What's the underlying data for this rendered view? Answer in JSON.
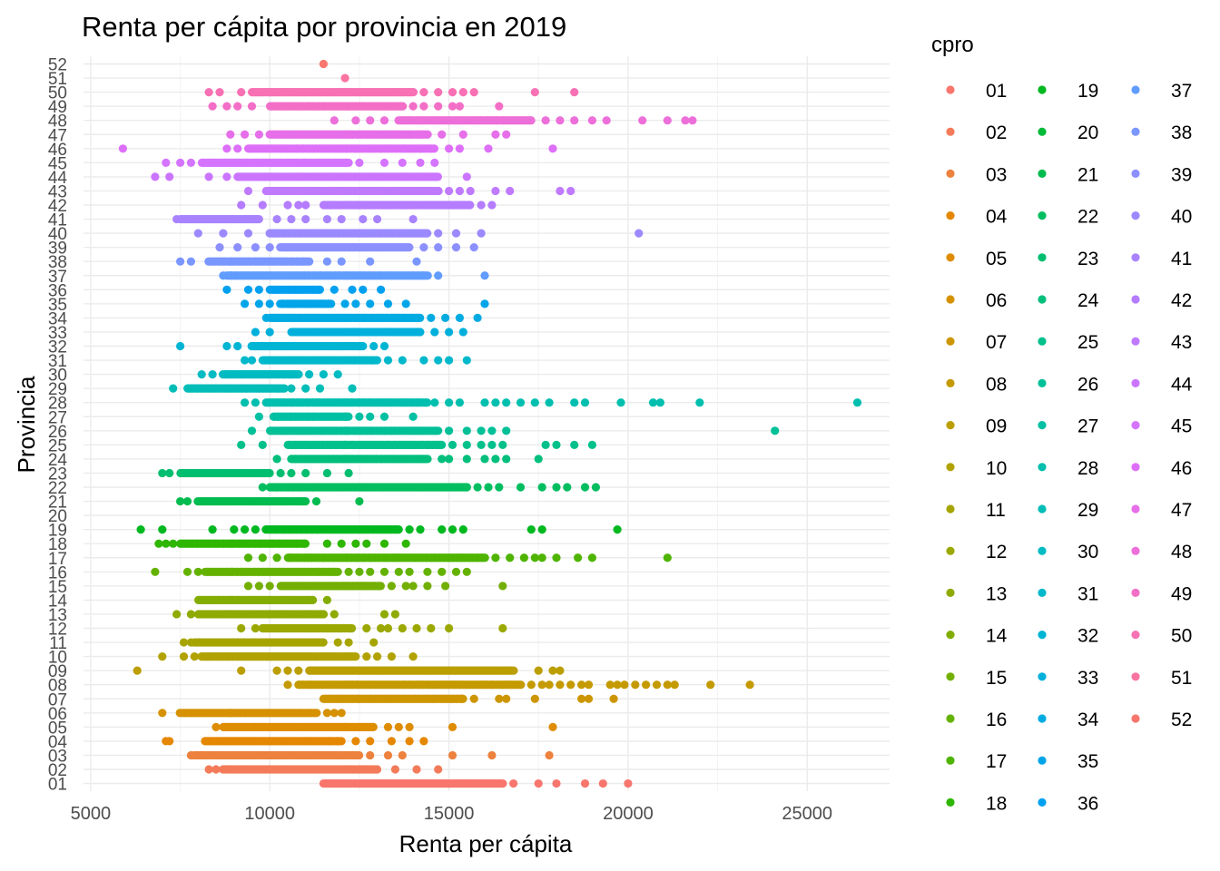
{
  "chart_data": {
    "type": "scatter",
    "title": "Renta per cápita por provincia en 2019",
    "xlabel": "Renta per cápita",
    "ylabel": "Provincia",
    "xlim": [
      4800,
      27300
    ],
    "x_ticks": [
      5000,
      10000,
      15000,
      20000,
      25000
    ],
    "categories": [
      "01",
      "02",
      "03",
      "04",
      "05",
      "06",
      "07",
      "08",
      "09",
      "10",
      "11",
      "12",
      "13",
      "14",
      "15",
      "16",
      "17",
      "18",
      "19",
      "20",
      "21",
      "22",
      "23",
      "24",
      "25",
      "26",
      "27",
      "28",
      "29",
      "30",
      "31",
      "32",
      "33",
      "34",
      "35",
      "36",
      "37",
      "38",
      "39",
      "40",
      "41",
      "42",
      "43",
      "44",
      "45",
      "46",
      "47",
      "48",
      "49",
      "50",
      "51",
      "52"
    ],
    "grid": true,
    "legend": {
      "title": "cpro",
      "position": "right",
      "columns": 3
    },
    "series": [
      {
        "name": "01",
        "color": "#F8766D",
        "dense": [
          11500,
          16500
        ],
        "points": [
          11600,
          12000,
          12400,
          13000,
          13300,
          15800,
          16800,
          17500,
          18000,
          18800,
          19300,
          20000
        ]
      },
      {
        "name": "02",
        "color": "#F37B59",
        "dense": [
          8700,
          13000
        ],
        "points": [
          8300,
          8500,
          13500,
          14100,
          14700
        ]
      },
      {
        "name": "03",
        "color": "#ED813E",
        "dense": [
          7900,
          12500
        ],
        "points": [
          7800,
          12800,
          13300,
          13700,
          15100,
          16200,
          17800
        ]
      },
      {
        "name": "04",
        "color": "#E58700",
        "dense": [
          8200,
          12000
        ],
        "points": [
          7100,
          7200,
          12400,
          12800,
          13400,
          13900,
          14300
        ]
      },
      {
        "name": "05",
        "color": "#DE8C00",
        "dense": [
          8700,
          12900
        ],
        "points": [
          8500,
          13300,
          13600,
          13900,
          15100,
          17900
        ]
      },
      {
        "name": "06",
        "color": "#D69100",
        "dense": [
          7500,
          11300
        ],
        "points": [
          7000,
          11600,
          11800,
          12000
        ]
      },
      {
        "name": "07",
        "color": "#CD9600",
        "dense": [
          11500,
          15400
        ],
        "points": [
          15700,
          16400,
          16600,
          17400,
          18700,
          18900,
          19600
        ]
      },
      {
        "name": "08",
        "color": "#C49A00",
        "dense": [
          10800,
          17000
        ],
        "points": [
          10500,
          17300,
          17600,
          17800,
          18100,
          18400,
          18700,
          18900,
          19500,
          19700,
          19900,
          20200,
          20500,
          20800,
          21100,
          21300,
          22300,
          23400
        ]
      },
      {
        "name": "09",
        "color": "#BB9E00",
        "dense": [
          11100,
          16800
        ],
        "points": [
          6300,
          9200,
          10200,
          10500,
          10800,
          17500,
          17900,
          18100
        ]
      },
      {
        "name": "10",
        "color": "#B1A200",
        "dense": [
          8100,
          12400
        ],
        "points": [
          7000,
          7600,
          7900,
          12700,
          13000,
          13400,
          14000
        ]
      },
      {
        "name": "11",
        "color": "#A6A500",
        "dense": [
          7900,
          11500
        ],
        "points": [
          7600,
          7800,
          11900,
          12200,
          12900
        ]
      },
      {
        "name": "12",
        "color": "#9BA800",
        "dense": [
          9800,
          12300
        ],
        "points": [
          9200,
          9600,
          12700,
          13100,
          13300,
          13700,
          14100,
          14500,
          15000,
          16500
        ]
      },
      {
        "name": "13",
        "color": "#8FAA00",
        "dense": [
          8000,
          11500
        ],
        "points": [
          7400,
          7800,
          11800,
          13200,
          13500
        ]
      },
      {
        "name": "14",
        "color": "#82AD00",
        "dense": [
          8000,
          11200
        ],
        "points": [
          11600
        ]
      },
      {
        "name": "15",
        "color": "#73AF00",
        "dense": [
          10300,
          13100
        ],
        "points": [
          9400,
          9700,
          10000,
          13400,
          13800,
          14000,
          14400,
          14900,
          16500
        ]
      },
      {
        "name": "16",
        "color": "#64B200",
        "dense": [
          8200,
          11900
        ],
        "points": [
          6800,
          7700,
          8000,
          12200,
          12500,
          12800,
          13200,
          13600,
          13900,
          14400,
          14800,
          15200,
          15500
        ]
      },
      {
        "name": "17",
        "color": "#4FB400",
        "dense": [
          10500,
          16000
        ],
        "points": [
          9400,
          9800,
          10200,
          16300,
          16700,
          17100,
          17400,
          17600,
          18000,
          18600,
          19000,
          21100
        ]
      },
      {
        "name": "18",
        "color": "#2EB600",
        "dense": [
          7500,
          11000
        ],
        "points": [
          6900,
          7100,
          7300,
          11600,
          12000,
          12400,
          12700,
          13200,
          13800
        ]
      },
      {
        "name": "19",
        "color": "#00B81F",
        "dense": [
          9900,
          13600
        ],
        "points": [
          6400,
          7000,
          8400,
          9000,
          9300,
          9600,
          13900,
          14200,
          14800,
          15100,
          15400,
          17300,
          17600,
          19700
        ]
      },
      {
        "name": "20",
        "color": "#00BA38",
        "dense": [
          0,
          0
        ],
        "points": []
      },
      {
        "name": "21",
        "color": "#00BB4E",
        "dense": [
          8000,
          11000
        ],
        "points": [
          7500,
          7700,
          11300,
          12500
        ]
      },
      {
        "name": "22",
        "color": "#00BD5F",
        "dense": [
          10000,
          15500
        ],
        "points": [
          9800,
          10200,
          10500,
          10800,
          11200,
          15800,
          16100,
          16400,
          17000,
          17600,
          18000,
          18300,
          18800,
          19100
        ]
      },
      {
        "name": "23",
        "color": "#00BE6F",
        "dense": [
          7500,
          10000
        ],
        "points": [
          7000,
          7200,
          10300,
          10600,
          11000,
          11600,
          12200
        ]
      },
      {
        "name": "24",
        "color": "#00BF7D",
        "dense": [
          10600,
          14400
        ],
        "points": [
          10200,
          14800,
          15000,
          15500,
          16000,
          16300,
          16600,
          17500
        ]
      },
      {
        "name": "25",
        "color": "#00C08B",
        "dense": [
          10500,
          14800
        ],
        "points": [
          9200,
          9800,
          15100,
          15500,
          15900,
          16200,
          16500,
          17700,
          18000,
          18500,
          19000
        ]
      },
      {
        "name": "26",
        "color": "#00C097",
        "dense": [
          10000,
          14700
        ],
        "points": [
          9500,
          15000,
          15500,
          15900,
          16200,
          16600,
          24100
        ]
      },
      {
        "name": "27",
        "color": "#00C0A3",
        "dense": [
          10100,
          12200
        ],
        "points": [
          9700,
          12500,
          12800,
          13200,
          14000
        ]
      },
      {
        "name": "28",
        "color": "#00BFAE",
        "dense": [
          9900,
          14400
        ],
        "points": [
          9300,
          9600,
          14600,
          15000,
          15300,
          16000,
          16300,
          16600,
          17000,
          17400,
          17800,
          18500,
          18800,
          19800,
          20700,
          20900,
          22000,
          26400
        ]
      },
      {
        "name": "29",
        "color": "#00BDB8",
        "dense": [
          7700,
          10400
        ],
        "points": [
          7300,
          10600,
          11000,
          11400,
          12300
        ]
      },
      {
        "name": "30",
        "color": "#00BBC2",
        "dense": [
          8700,
          10800
        ],
        "points": [
          8100,
          8400,
          11100,
          11500,
          11900
        ]
      },
      {
        "name": "31",
        "color": "#00B8CB",
        "dense": [
          9800,
          13000
        ],
        "points": [
          9300,
          9500,
          13300,
          13700,
          14300,
          14700,
          15000,
          15500
        ]
      },
      {
        "name": "32",
        "color": "#00B4D3",
        "dense": [
          9500,
          12600
        ],
        "points": [
          7500,
          8800,
          9100,
          12900,
          13200
        ]
      },
      {
        "name": "33",
        "color": "#00B0DB",
        "dense": [
          10600,
          14200
        ],
        "points": [
          9600,
          10000,
          14600,
          15000,
          15400
        ]
      },
      {
        "name": "34",
        "color": "#00ABE2",
        "dense": [
          10000,
          14200
        ],
        "points": [
          9900,
          14500,
          14900,
          15300,
          15800
        ]
      },
      {
        "name": "35",
        "color": "#00A5E9",
        "dense": [
          10300,
          11700
        ],
        "points": [
          9300,
          9700,
          10000,
          12100,
          12400,
          12800,
          13300,
          13800,
          16000
        ]
      },
      {
        "name": "36",
        "color": "#00A0F0",
        "dense": [
          10000,
          11400
        ],
        "points": [
          8800,
          9400,
          9700,
          11800,
          12300,
          12600,
          13100
        ]
      },
      {
        "name": "37",
        "color": "#619CFF",
        "dense": [
          8800,
          14400
        ],
        "points": [
          8700,
          14700,
          16000
        ]
      },
      {
        "name": "38",
        "color": "#7A96FF",
        "dense": [
          8300,
          11100
        ],
        "points": [
          7500,
          7800,
          11600,
          12000,
          12800,
          14100
        ]
      },
      {
        "name": "39",
        "color": "#8C90FF",
        "dense": [
          10300,
          13900
        ],
        "points": [
          8600,
          9100,
          9600,
          10000,
          14300,
          14700,
          15200,
          15700
        ]
      },
      {
        "name": "40",
        "color": "#9B8AFF",
        "dense": [
          10000,
          14400
        ],
        "points": [
          8000,
          8700,
          9400,
          14700,
          15200,
          15900,
          20300
        ]
      },
      {
        "name": "41",
        "color": "#A983FF",
        "dense": [
          7500,
          9700
        ],
        "points": [
          7400,
          10200,
          10600,
          11000,
          11600,
          12000,
          12600,
          13000,
          14000
        ]
      },
      {
        "name": "42",
        "color": "#B57CFF",
        "dense": [
          11500,
          15600
        ],
        "points": [
          9200,
          9800,
          10500,
          10800,
          11000,
          15900,
          16200
        ]
      },
      {
        "name": "43",
        "color": "#C07AFF",
        "dense": [
          9900,
          14700
        ],
        "points": [
          9400,
          15000,
          15300,
          15600,
          16300,
          16700,
          18100,
          18400
        ]
      },
      {
        "name": "44",
        "color": "#CB75FF",
        "dense": [
          9100,
          14700
        ],
        "points": [
          6800,
          7200,
          8300,
          8800,
          15500
        ]
      },
      {
        "name": "45",
        "color": "#D574FF",
        "dense": [
          8100,
          12200
        ],
        "points": [
          7100,
          7500,
          7800,
          12500,
          13200,
          13700,
          14200,
          14600
        ]
      },
      {
        "name": "46",
        "color": "#DE6FF8",
        "dense": [
          9400,
          14600
        ],
        "points": [
          5900,
          8800,
          9100,
          15000,
          15300,
          16100,
          17900
        ]
      },
      {
        "name": "47",
        "color": "#E66FE9",
        "dense": [
          10000,
          14400
        ],
        "points": [
          8900,
          9300,
          9700,
          14800,
          15400,
          16300,
          16600
        ]
      },
      {
        "name": "48",
        "color": "#ED6FD9",
        "dense": [
          13600,
          17300
        ],
        "points": [
          11800,
          12400,
          12800,
          13200,
          17700,
          18100,
          18500,
          19000,
          19400,
          20400,
          21100,
          21600,
          21800
        ]
      },
      {
        "name": "49",
        "color": "#F36FC7",
        "dense": [
          10000,
          13700
        ],
        "points": [
          8400,
          8800,
          9100,
          9500,
          14000,
          14300,
          14700,
          15100,
          15300,
          16400
        ]
      },
      {
        "name": "50",
        "color": "#F771B4",
        "dense": [
          9500,
          14000
        ],
        "points": [
          8300,
          8600,
          9200,
          14300,
          14700,
          15100,
          15400,
          15700,
          17400,
          18500
        ]
      },
      {
        "name": "51",
        "color": "#FA74A0",
        "dense": [
          12100,
          12100
        ],
        "points": [
          12100
        ]
      },
      {
        "name": "52",
        "color": "#F8766D",
        "dense": [
          11500,
          11500
        ],
        "points": [
          11500
        ]
      }
    ]
  }
}
